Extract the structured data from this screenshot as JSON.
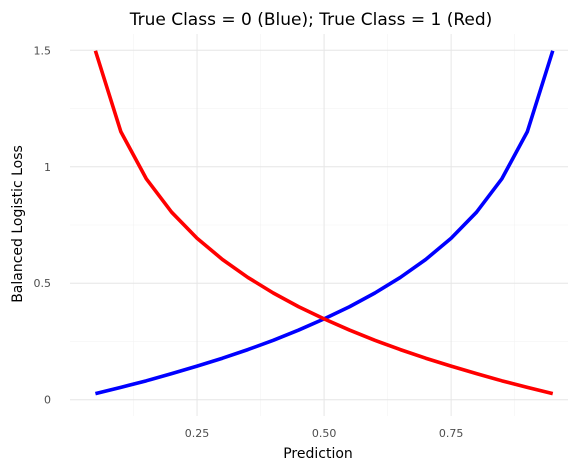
{
  "chart_data": {
    "type": "line",
    "title": "True Class = 0 (Blue); True Class = 1 (Red)",
    "xlabel": "Prediction",
    "ylabel": "Balanced Logistic Loss",
    "xlim": [
      0.0,
      0.98
    ],
    "ylim": [
      -0.07,
      1.57
    ],
    "x_ticks": [
      0.25,
      0.5,
      0.75
    ],
    "x_tick_labels": [
      "0.25",
      "0.50",
      "0.75"
    ],
    "y_ticks": [
      0,
      0.5,
      1,
      1.5
    ],
    "y_tick_labels": [
      "0",
      "0.5",
      "1",
      "1.5"
    ],
    "x_minor_ticks": [
      0.125,
      0.375,
      0.625,
      0.875
    ],
    "y_minor_ticks": [
      0.25,
      0.75,
      1.25
    ],
    "grid": true,
    "series": [
      {
        "color": "#0000ff",
        "x": [
          0.05,
          0.1,
          0.15,
          0.2,
          0.25,
          0.3,
          0.35,
          0.4,
          0.45,
          0.5,
          0.55,
          0.6,
          0.65,
          0.7,
          0.75,
          0.8,
          0.85,
          0.9,
          0.95
        ],
        "values": [
          0.026,
          0.053,
          0.081,
          0.112,
          0.144,
          0.178,
          0.215,
          0.255,
          0.299,
          0.347,
          0.399,
          0.458,
          0.525,
          0.602,
          0.693,
          0.805,
          0.949,
          1.151,
          1.498
        ]
      },
      {
        "color": "#ff0000",
        "x": [
          0.05,
          0.1,
          0.15,
          0.2,
          0.25,
          0.3,
          0.35,
          0.4,
          0.45,
          0.5,
          0.55,
          0.6,
          0.65,
          0.7,
          0.75,
          0.8,
          0.85,
          0.9,
          0.95
        ],
        "values": [
          1.498,
          1.151,
          0.949,
          0.805,
          0.693,
          0.602,
          0.525,
          0.458,
          0.399,
          0.347,
          0.299,
          0.255,
          0.215,
          0.178,
          0.144,
          0.112,
          0.081,
          0.053,
          0.026
        ]
      }
    ]
  }
}
